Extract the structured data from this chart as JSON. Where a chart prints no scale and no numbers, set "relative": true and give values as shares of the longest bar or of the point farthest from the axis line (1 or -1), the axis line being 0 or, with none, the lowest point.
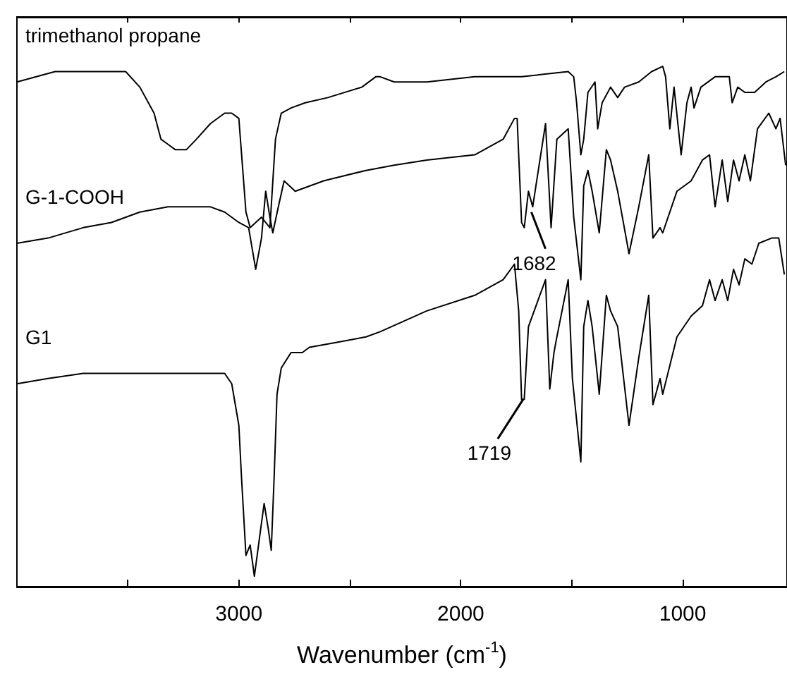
{
  "chart_data": {
    "type": "line",
    "relative": true,
    "xlabel": "Wavenumber (cm$^{-1}$)",
    "xlim": [
      4000,
      530
    ],
    "xticks": [
      {
        "value": 3500,
        "label": null
      },
      3000,
      {
        "value": 2500,
        "label": null
      },
      2000,
      {
        "value": 1500,
        "label": null
      },
      1000
    ],
    "legend": "top left",
    "grid": false,
    "marker": "none",
    "line_style": "solid",
    "annotations": [
      {
        "text": "1682",
        "x": 1682,
        "y": 0.72
      },
      {
        "text": "1719",
        "x": 1719,
        "y": 0.36
      }
    ],
    "series": [
      {
        "name": "trimethanol propane",
        "color": "#000000",
        "x": [
          4000,
          3828,
          3574,
          3510,
          3446,
          3382,
          3351,
          3319,
          3287,
          3236,
          3191,
          3128,
          3064,
          3032,
          3000,
          2968,
          2949,
          2898,
          2860,
          2835,
          2809,
          2765,
          2701,
          2599,
          2446,
          2383,
          2363,
          2300,
          2153,
          1937,
          1726,
          1516,
          1491,
          1478,
          1459,
          1446,
          1427,
          1395,
          1383,
          1363,
          1325,
          1293,
          1262,
          1198,
          1140,
          1090,
          1077,
          1058,
          1039,
          1007,
          981,
          962,
          949,
          918,
          854,
          790,
          777,
          752,
          720,
          676,
          625,
          580,
          542
        ],
        "values": [
          0.97,
          0.99,
          0.99,
          0.99,
          0.96,
          0.91,
          0.86,
          0.85,
          0.84,
          0.84,
          0.86,
          0.89,
          0.91,
          0.91,
          0.9,
          0.72,
          0.69,
          0.71,
          0.69,
          0.86,
          0.91,
          0.92,
          0.93,
          0.94,
          0.96,
          0.98,
          0.98,
          0.97,
          0.97,
          0.98,
          0.98,
          0.99,
          0.98,
          0.93,
          0.83,
          0.86,
          0.95,
          0.97,
          0.88,
          0.93,
          0.96,
          0.94,
          0.96,
          0.97,
          0.99,
          1.0,
          0.98,
          0.88,
          0.96,
          0.83,
          0.93,
          0.96,
          0.92,
          0.96,
          0.98,
          0.98,
          0.93,
          0.96,
          0.95,
          0.95,
          0.97,
          0.98,
          0.99
        ]
      },
      {
        "name": "G-1-COOH",
        "color": "#000000",
        "x": [
          4000,
          3860,
          3701,
          3574,
          3446,
          3319,
          3128,
          3064,
          3000,
          2956,
          2924,
          2898,
          2879,
          2860,
          2847,
          2822,
          2796,
          2746,
          2618,
          2427,
          2300,
          2153,
          1937,
          1809,
          1758,
          1746,
          1726,
          1714,
          1695,
          1676,
          1618,
          1593,
          1567,
          1516,
          1491,
          1459,
          1446,
          1427,
          1408,
          1376,
          1344,
          1325,
          1293,
          1242,
          1198,
          1153,
          1134,
          1102,
          1090,
          1026,
          962,
          911,
          879,
          854,
          822,
          797,
          771,
          746,
          720,
          695,
          663,
          612,
          580,
          561,
          536
        ],
        "values": [
          0.66,
          0.67,
          0.69,
          0.7,
          0.72,
          0.73,
          0.73,
          0.72,
          0.7,
          0.69,
          0.61,
          0.67,
          0.76,
          0.71,
          0.68,
          0.73,
          0.78,
          0.76,
          0.78,
          0.8,
          0.81,
          0.82,
          0.83,
          0.86,
          0.9,
          0.9,
          0.7,
          0.69,
          0.76,
          0.73,
          0.89,
          0.69,
          0.86,
          0.88,
          0.71,
          0.59,
          0.77,
          0.8,
          0.76,
          0.68,
          0.84,
          0.82,
          0.76,
          0.64,
          0.73,
          0.83,
          0.67,
          0.69,
          0.68,
          0.76,
          0.78,
          0.82,
          0.83,
          0.73,
          0.82,
          0.74,
          0.82,
          0.78,
          0.83,
          0.78,
          0.88,
          0.91,
          0.88,
          0.9,
          0.81
        ]
      },
      {
        "name": "G1",
        "color": "#000000",
        "x": [
          4000,
          3860,
          3701,
          3446,
          3255,
          3128,
          3064,
          3032,
          3000,
          2988,
          2968,
          2949,
          2930,
          2905,
          2886,
          2867,
          2854,
          2841,
          2828,
          2809,
          2765,
          2714,
          2682,
          2554,
          2427,
          2363,
          2153,
          1937,
          1809,
          1758,
          1739,
          1726,
          1714,
          1695,
          1618,
          1599,
          1580,
          1567,
          1516,
          1497,
          1459,
          1446,
          1427,
          1408,
          1376,
          1344,
          1325,
          1293,
          1242,
          1198,
          1153,
          1134,
          1102,
          1090,
          1026,
          962,
          911,
          879,
          854,
          822,
          797,
          771,
          746,
          720,
          688,
          657,
          599,
          567,
          542
        ],
        "values": [
          0.39,
          0.4,
          0.41,
          0.41,
          0.41,
          0.41,
          0.41,
          0.39,
          0.31,
          0.21,
          0.06,
          0.08,
          0.02,
          0.1,
          0.16,
          0.11,
          0.07,
          0.21,
          0.37,
          0.42,
          0.45,
          0.45,
          0.46,
          0.47,
          0.48,
          0.49,
          0.53,
          0.56,
          0.59,
          0.62,
          0.53,
          0.36,
          0.36,
          0.5,
          0.59,
          0.38,
          0.45,
          0.48,
          0.59,
          0.4,
          0.24,
          0.5,
          0.55,
          0.5,
          0.37,
          0.56,
          0.53,
          0.5,
          0.31,
          0.44,
          0.56,
          0.35,
          0.4,
          0.37,
          0.48,
          0.52,
          0.54,
          0.59,
          0.55,
          0.59,
          0.55,
          0.61,
          0.58,
          0.63,
          0.62,
          0.66,
          0.67,
          0.67,
          0.6
        ]
      }
    ]
  }
}
